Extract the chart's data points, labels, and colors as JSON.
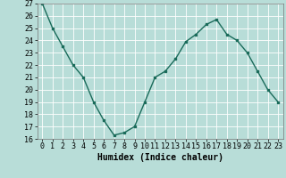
{
  "x": [
    0,
    1,
    2,
    3,
    4,
    5,
    6,
    7,
    8,
    9,
    10,
    11,
    12,
    13,
    14,
    15,
    16,
    17,
    18,
    19,
    20,
    21,
    22,
    23
  ],
  "y": [
    27,
    25,
    23.5,
    22,
    21,
    19,
    17.5,
    16.3,
    16.5,
    17,
    19,
    21,
    21.5,
    22.5,
    23.9,
    24.5,
    25.3,
    25.7,
    24.5,
    24,
    23,
    21.5,
    20,
    19
  ],
  "line_color": "#1a6b5a",
  "marker_color": "#1a6b5a",
  "bg_color": "#b8ddd8",
  "grid_color": "#ffffff",
  "xlabel": "Humidex (Indice chaleur)",
  "ylim": [
    16,
    27
  ],
  "xlim": [
    -0.5,
    23.5
  ],
  "yticks": [
    16,
    17,
    18,
    19,
    20,
    21,
    22,
    23,
    24,
    25,
    26,
    27
  ],
  "xticks": [
    0,
    1,
    2,
    3,
    4,
    5,
    6,
    7,
    8,
    9,
    10,
    11,
    12,
    13,
    14,
    15,
    16,
    17,
    18,
    19,
    20,
    21,
    22,
    23
  ],
  "xlabel_fontsize": 7.0,
  "tick_fontsize": 6.0
}
